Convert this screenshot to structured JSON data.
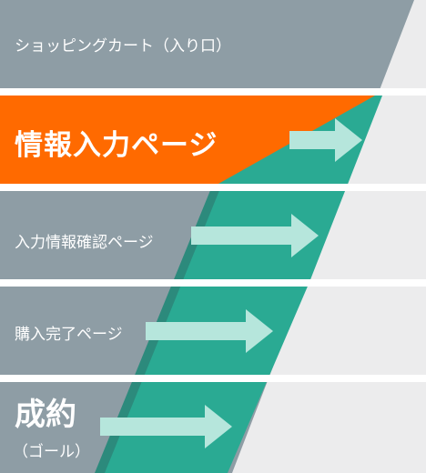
{
  "colors": {
    "band_gray": "#8e9da5",
    "band_active": "#ff6a00",
    "separator": "#ffffff",
    "right_panel": "#ececed",
    "funnel_teal": "#2aaa93",
    "funnel_edge": "#2c8a7c",
    "arrow": "#b6e6dc"
  },
  "steps": [
    {
      "label": "ショッピングカート（入り口）",
      "active": false
    },
    {
      "label": "情報入力ページ",
      "active": true
    },
    {
      "label": "入力情報確認ページ",
      "active": false
    },
    {
      "label": "購入完了ページ",
      "active": false
    },
    {
      "label": "成約",
      "sublabel": "（ゴール）",
      "active": false
    }
  ]
}
